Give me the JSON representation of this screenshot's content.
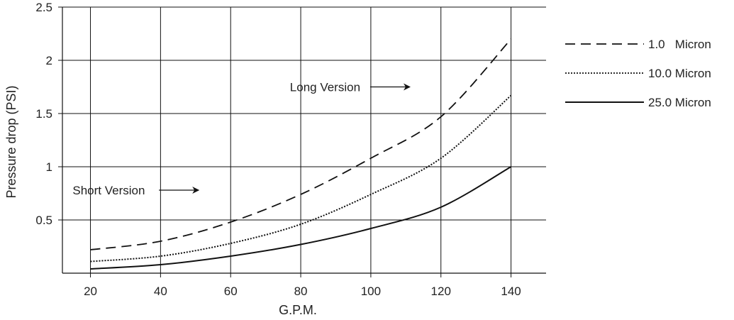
{
  "chart_data": {
    "type": "line",
    "title": "",
    "xlabel": "G.P.M.",
    "ylabel": "Pressure drop (PSI)",
    "xlim": [
      12,
      150
    ],
    "ylim": [
      0,
      2.5
    ],
    "x_ticks": [
      20,
      40,
      60,
      80,
      100,
      120,
      140
    ],
    "y_ticks": [
      0.5,
      1,
      1.5,
      2,
      2.5
    ],
    "x_tick_labels": [
      "20",
      "40",
      "60",
      "80",
      "100",
      "120",
      "140"
    ],
    "y_tick_labels": [
      "0.5",
      "1",
      "1.5",
      "2",
      "2.5"
    ],
    "grid": true,
    "legend_position": "right",
    "series": [
      {
        "name": "1.0   Micron",
        "style": "dashed",
        "x": [
          20,
          40,
          60,
          80,
          100,
          120,
          140
        ],
        "y": [
          0.22,
          0.3,
          0.48,
          0.74,
          1.08,
          1.47,
          2.2
        ]
      },
      {
        "name": "10.0 Micron",
        "style": "dotted",
        "x": [
          20,
          40,
          60,
          80,
          100,
          120,
          140
        ],
        "y": [
          0.11,
          0.16,
          0.28,
          0.46,
          0.74,
          1.08,
          1.67
        ]
      },
      {
        "name": "25.0 Micron",
        "style": "solid",
        "x": [
          20,
          40,
          60,
          80,
          100,
          120,
          140
        ],
        "y": [
          0.04,
          0.08,
          0.16,
          0.27,
          0.42,
          0.62,
          1.0
        ]
      }
    ],
    "annotations": [
      {
        "text": "Long Version",
        "x": 102,
        "y": 1.75
      },
      {
        "text": "Short Version",
        "x": 40,
        "y": 0.78
      }
    ]
  }
}
